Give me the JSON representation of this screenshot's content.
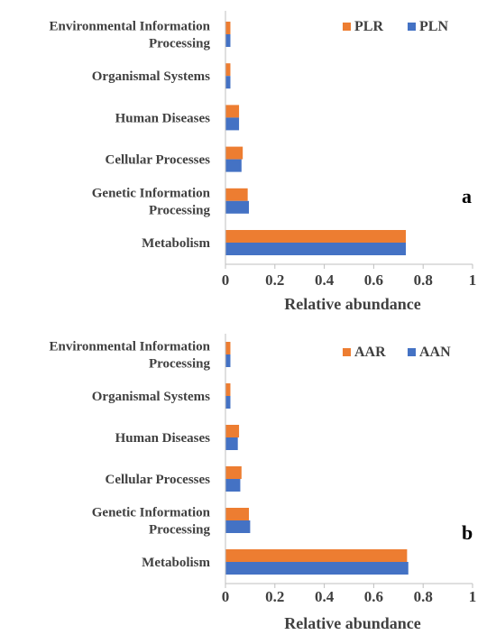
{
  "colors": {
    "series1": "#ED7D31",
    "series2": "#4472C4",
    "axis": "#BFBFBF",
    "text": "#404040"
  },
  "chart_data": [
    {
      "type": "bar",
      "orientation": "horizontal",
      "panel": "a",
      "categories": [
        [
          "Environmental Information",
          "Processing"
        ],
        [
          "Organismal Systems"
        ],
        [
          "Human Diseases"
        ],
        [
          "Cellular Processes"
        ],
        [
          "Genetic Information",
          "Processing"
        ],
        [
          "Metabolism"
        ]
      ],
      "series": [
        {
          "name": "PLR",
          "values": [
            0.02,
            0.02,
            0.055,
            0.07,
            0.09,
            0.73
          ]
        },
        {
          "name": "PLN",
          "values": [
            0.02,
            0.02,
            0.055,
            0.065,
            0.095,
            0.73
          ]
        }
      ],
      "xlabel": "Relative abundance",
      "xlim": [
        0,
        1
      ],
      "ticks": [
        "0",
        "0.2",
        "0.4",
        "0.6",
        "0.8",
        "1"
      ],
      "grid": false,
      "legend": "top-right"
    },
    {
      "type": "bar",
      "orientation": "horizontal",
      "panel": "b",
      "categories": [
        [
          "Environmental Information",
          "Processing"
        ],
        [
          "Organismal Systems"
        ],
        [
          "Human Diseases"
        ],
        [
          "Cellular Processes"
        ],
        [
          "Genetic Information",
          "Processing"
        ],
        [
          "Metabolism"
        ]
      ],
      "series": [
        {
          "name": "AAR",
          "values": [
            0.02,
            0.02,
            0.055,
            0.065,
            0.095,
            0.735
          ]
        },
        {
          "name": "AAN",
          "values": [
            0.02,
            0.02,
            0.05,
            0.06,
            0.1,
            0.74
          ]
        }
      ],
      "xlabel": "Relative abundance",
      "xlim": [
        0,
        1
      ],
      "ticks": [
        "0",
        "0.2",
        "0.4",
        "0.6",
        "0.8",
        "1"
      ],
      "grid": false,
      "legend": "top-right"
    }
  ]
}
